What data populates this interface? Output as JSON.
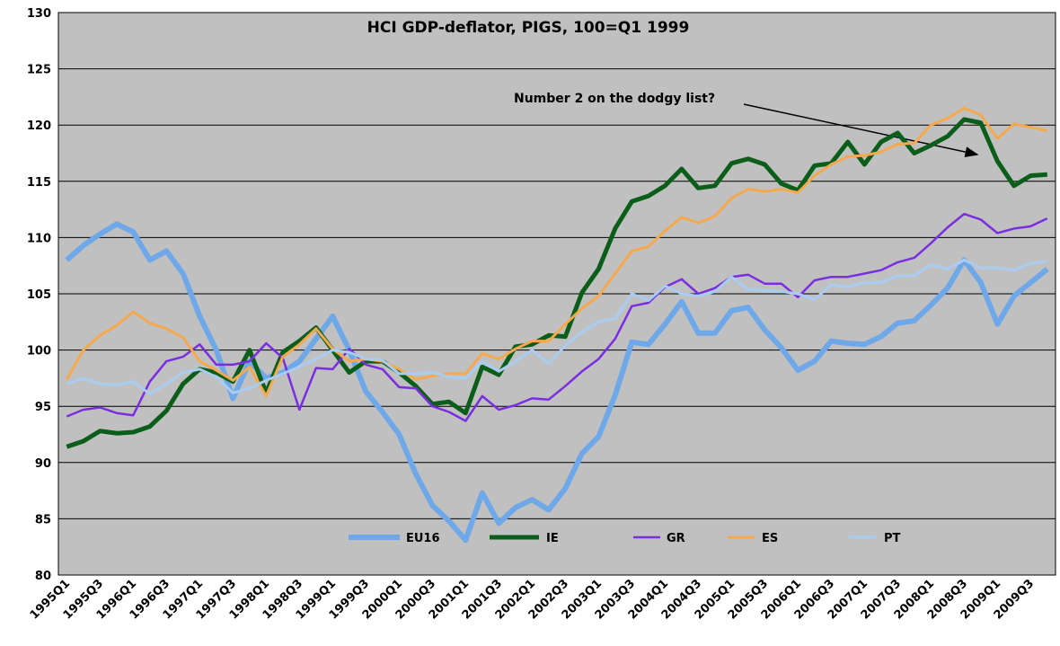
{
  "chart_data": {
    "type": "line",
    "title": "HCI GDP-deflator, PIGS, 100=Q1 1999",
    "annotation": "Number 2 on the dodgy list?",
    "categories": [
      "1995Q1",
      null,
      "1995Q3",
      null,
      "1996Q1",
      null,
      "1996Q3",
      null,
      "1997Q1",
      null,
      "1997Q3",
      null,
      "1998Q1",
      null,
      "1998Q3",
      null,
      "1999Q1",
      null,
      "1999Q3",
      null,
      "2000Q1",
      null,
      "2000Q3",
      null,
      "2001Q1",
      null,
      "2001Q3",
      null,
      "2002Q1",
      null,
      "2002Q3",
      null,
      "2003Q1",
      null,
      "2003Q3",
      null,
      "2004Q1",
      null,
      "2004Q3",
      null,
      "2005Q1",
      null,
      "2005Q3",
      null,
      "2006Q1",
      null,
      "2006Q3",
      null,
      "2007Q1",
      null,
      "2007Q3",
      null,
      "2008Q1",
      null,
      "2008Q3",
      null,
      "2009Q1",
      null,
      "2009Q3",
      null
    ],
    "series": [
      {
        "name": "EU16",
        "color": "#6fa8e8",
        "values": [
          108,
          109.3,
          110.3,
          111.2,
          110.5,
          108,
          108.8,
          106.8,
          103,
          100,
          95.7,
          99,
          97.5,
          98,
          99,
          101,
          103,
          100,
          96.3,
          94.5,
          92.5,
          89,
          86.2,
          84.8,
          83.1,
          87.3,
          84.6,
          86,
          86.7,
          85.8,
          87.7,
          90.8,
          92.3,
          96,
          100.7,
          100.5,
          102.3,
          104.3,
          101.5,
          101.5,
          103.5,
          103.8,
          101.8,
          100.2,
          98.2,
          99,
          100.8,
          100.6,
          100.5,
          101.2,
          102.4,
          102.6,
          104,
          105.5,
          108,
          106,
          102.3,
          104.8,
          106,
          107.2
        ]
      },
      {
        "name": "IE",
        "color": "#0b5e1a",
        "values": [
          91.4,
          91.9,
          92.8,
          92.6,
          92.7,
          93.2,
          94.6,
          97,
          98.3,
          98,
          97.2,
          100,
          96.2,
          99.8,
          100.8,
          102,
          100,
          98,
          99,
          99,
          98,
          96.8,
          95.2,
          95.4,
          94.4,
          98.5,
          97.8,
          100.3,
          100.5,
          101.3,
          101.2,
          105.1,
          107.2,
          110.8,
          113.2,
          113.7,
          114.6,
          116.1,
          114.4,
          114.6,
          116.6,
          117,
          116.5,
          114.8,
          114.2,
          116.4,
          116.6,
          118.5,
          116.5,
          118.5,
          119.3,
          117.5,
          118.2,
          119,
          120.5,
          120.2,
          116.8,
          114.6,
          115.5,
          115.6
        ]
      },
      {
        "name": "GR",
        "color": "#7a2ee0",
        "values": [
          94.1,
          94.7,
          94.9,
          94.4,
          94.2,
          97.2,
          99,
          99.4,
          100.5,
          98.7,
          98.7,
          99,
          100.6,
          99.3,
          94.7,
          98.4,
          98.3,
          100.1,
          98.7,
          98.3,
          96.7,
          96.6,
          95,
          94.5,
          93.7,
          95.9,
          94.7,
          95.1,
          95.7,
          95.6,
          96.8,
          98.1,
          99.2,
          101,
          103.9,
          104.2,
          105.6,
          106.3,
          105,
          105.5,
          106.5,
          106.7,
          105.9,
          105.9,
          104.7,
          106.2,
          106.5,
          106.5,
          106.8,
          107.1,
          107.8,
          108.2,
          109.5,
          110.9,
          112.1,
          111.6,
          110.4,
          110.8,
          111,
          111.7
        ]
      },
      {
        "name": "ES",
        "color": "#f5a94e",
        "values": [
          97.4,
          100,
          101.3,
          102.2,
          103.4,
          102.4,
          101.9,
          101.1,
          99,
          98.2,
          97.3,
          98.5,
          95.9,
          99.4,
          100.5,
          101.9,
          100.1,
          99,
          99.2,
          99,
          98.3,
          97.4,
          97.7,
          97.9,
          97.9,
          99.7,
          99.2,
          100.1,
          100.8,
          100.8,
          102.3,
          103.7,
          104.8,
          106.8,
          108.8,
          109.2,
          110.6,
          111.8,
          111.3,
          111.9,
          113.5,
          114.3,
          114.1,
          114.3,
          114,
          115.5,
          116.5,
          117.2,
          117.3,
          117.6,
          118.3,
          118.4,
          120,
          120.6,
          121.5,
          120.9,
          118.8,
          120.1,
          119.8,
          119.5
        ]
      },
      {
        "name": "PT",
        "color": "#a9cdf2",
        "values": [
          97,
          97.5,
          97,
          96.9,
          97.2,
          96.1,
          97,
          98,
          98.3,
          97.6,
          96.2,
          96.6,
          97.3,
          97.9,
          98.5,
          99.2,
          100,
          99.8,
          99.2,
          99.1,
          97.9,
          97.9,
          98,
          97.6,
          97.5,
          99,
          98.1,
          99,
          100,
          98.8,
          100.4,
          101.6,
          102.5,
          102.8,
          105,
          104.4,
          105.7,
          105,
          104.8,
          105.2,
          106.5,
          105.4,
          105.3,
          105.2,
          105,
          104.5,
          105.8,
          105.6,
          106,
          106,
          106.6,
          106.6,
          107.6,
          107.2,
          108,
          107.3,
          107.3,
          107.1,
          107.7,
          107.9
        ]
      }
    ],
    "ylim": [
      80,
      130
    ],
    "yticks": [
      80,
      85,
      90,
      95,
      100,
      105,
      110,
      115,
      120,
      125,
      130
    ],
    "grid": true
  }
}
